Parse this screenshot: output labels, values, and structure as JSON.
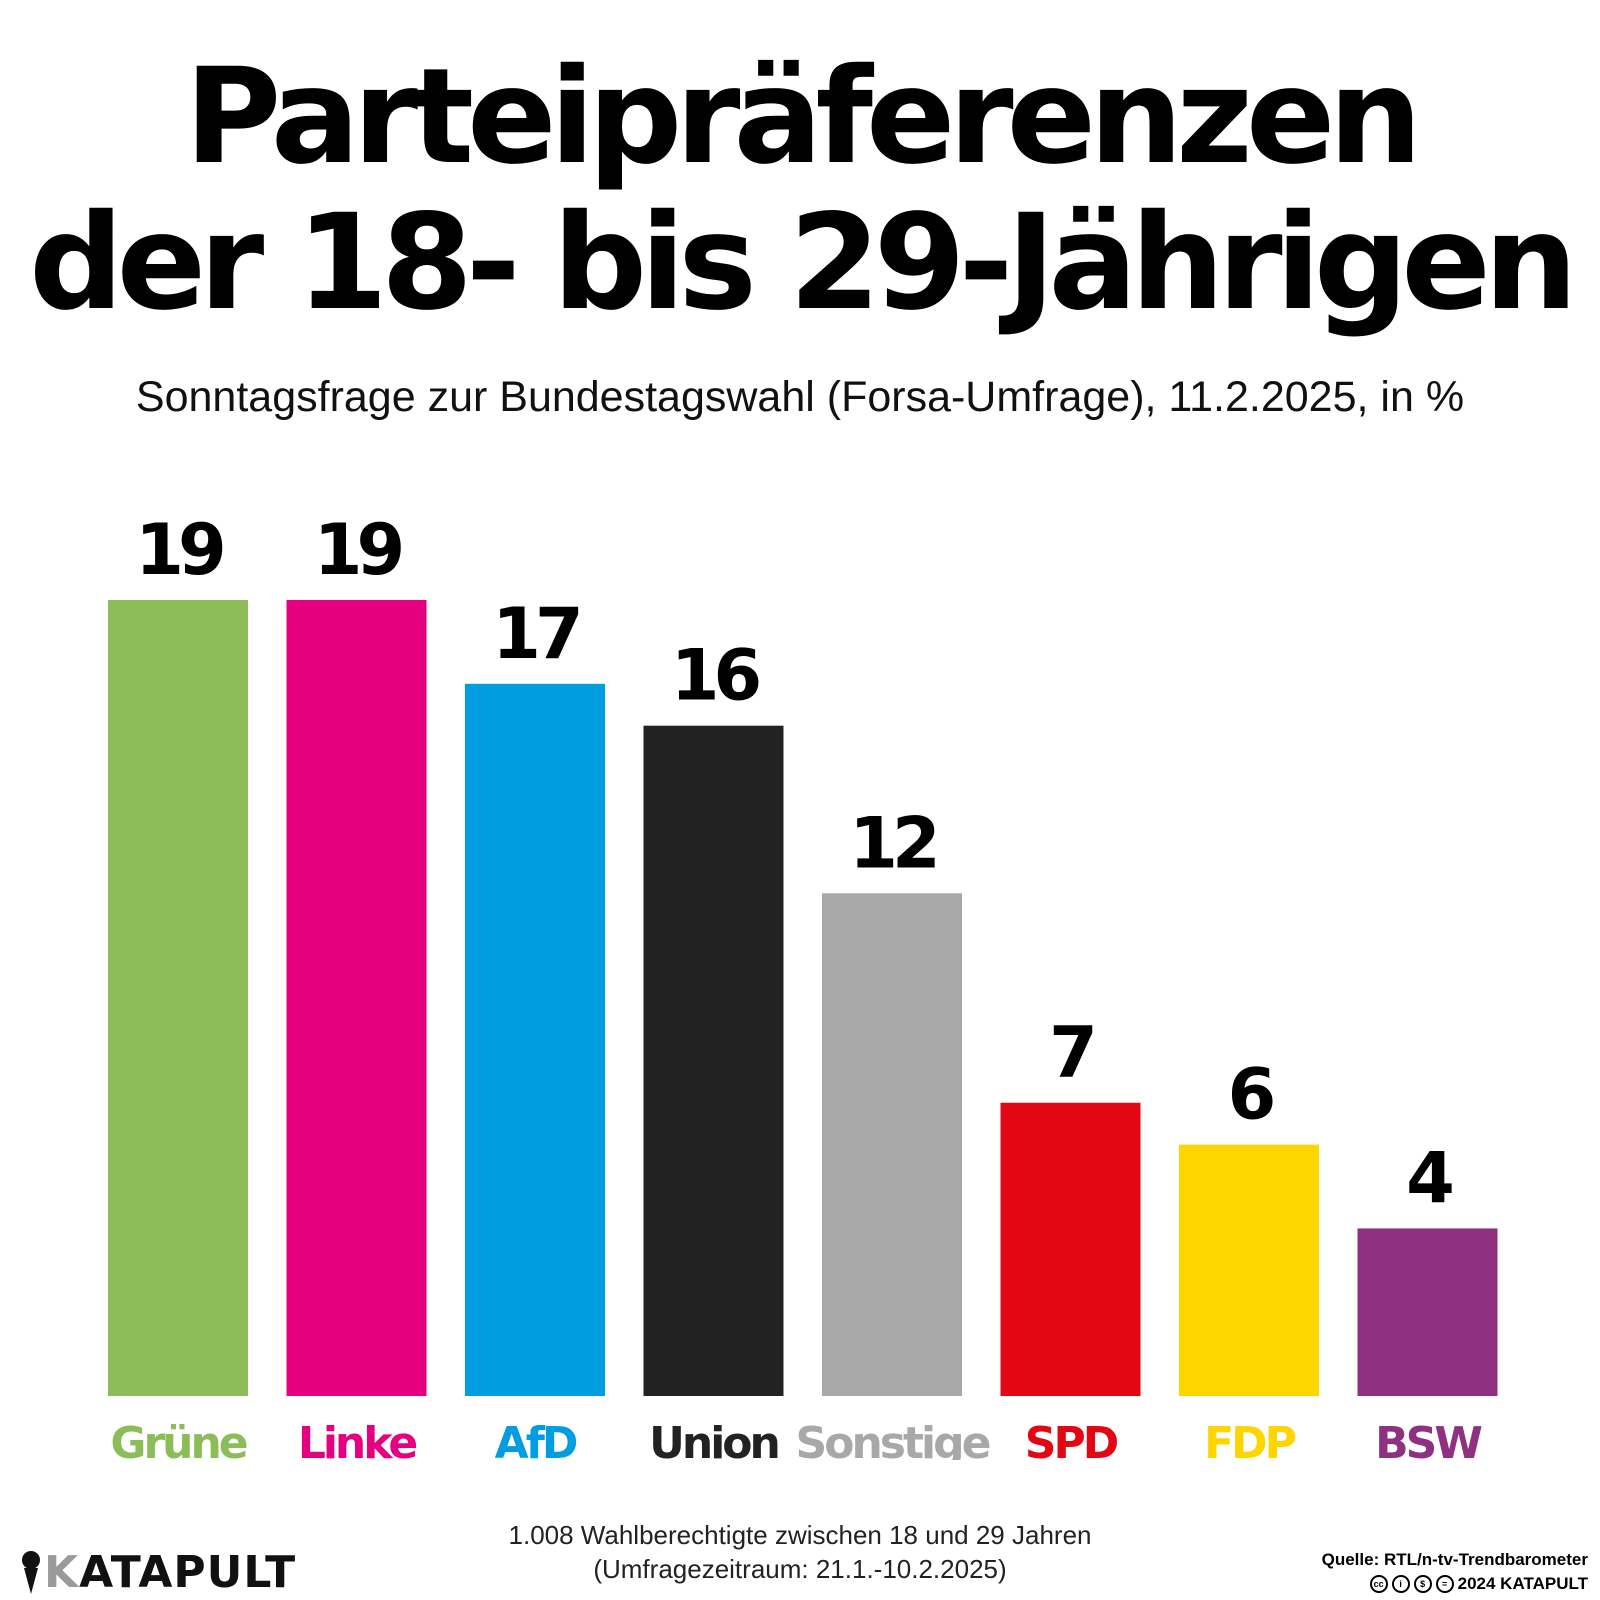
{
  "title_line1": "Parteipräferenzen",
  "title_line2": "der 18- bis 29-Jährigen",
  "subtitle": "Sonntagsfrage zur Bundestagswahl (Forsa-Umfrage), 11.2.2025, in %",
  "chart_data": {
    "type": "bar",
    "title": "Parteipräferenzen der 18- bis 29-Jährigen",
    "subtitle": "Sonntagsfrage zur Bundestagswahl (Forsa-Umfrage), 11.2.2025, in %",
    "categories": [
      "Grüne",
      "Linke",
      "AfD",
      "Union",
      "Sonstige",
      "SPD",
      "FDP",
      "BSW"
    ],
    "values": [
      19,
      19,
      17,
      16,
      12,
      7,
      6,
      4
    ],
    "colors": [
      "#8cbd58",
      "#e4007f",
      "#009ee0",
      "#222222",
      "#a8a8a8",
      "#e30613",
      "#ffd500",
      "#8e3181"
    ],
    "xlabel": "",
    "ylabel": "",
    "ylim": [
      0,
      19
    ],
    "grid": false,
    "legend": "none"
  },
  "footnote": {
    "line1": "1.008 Wahlberechtigte zwischen 18 und 29 Jahren",
    "line2": "(Umfragezeitraum: 21.1.-10.2.2025)"
  },
  "logo": {
    "k": "K",
    "rest": "ATAPULT"
  },
  "source": {
    "line1": "Quelle: RTL/n-tv-Trendbarometer",
    "line2": "2024 KATAPULT"
  },
  "license_icons": [
    "cc",
    "i",
    "$",
    "="
  ]
}
